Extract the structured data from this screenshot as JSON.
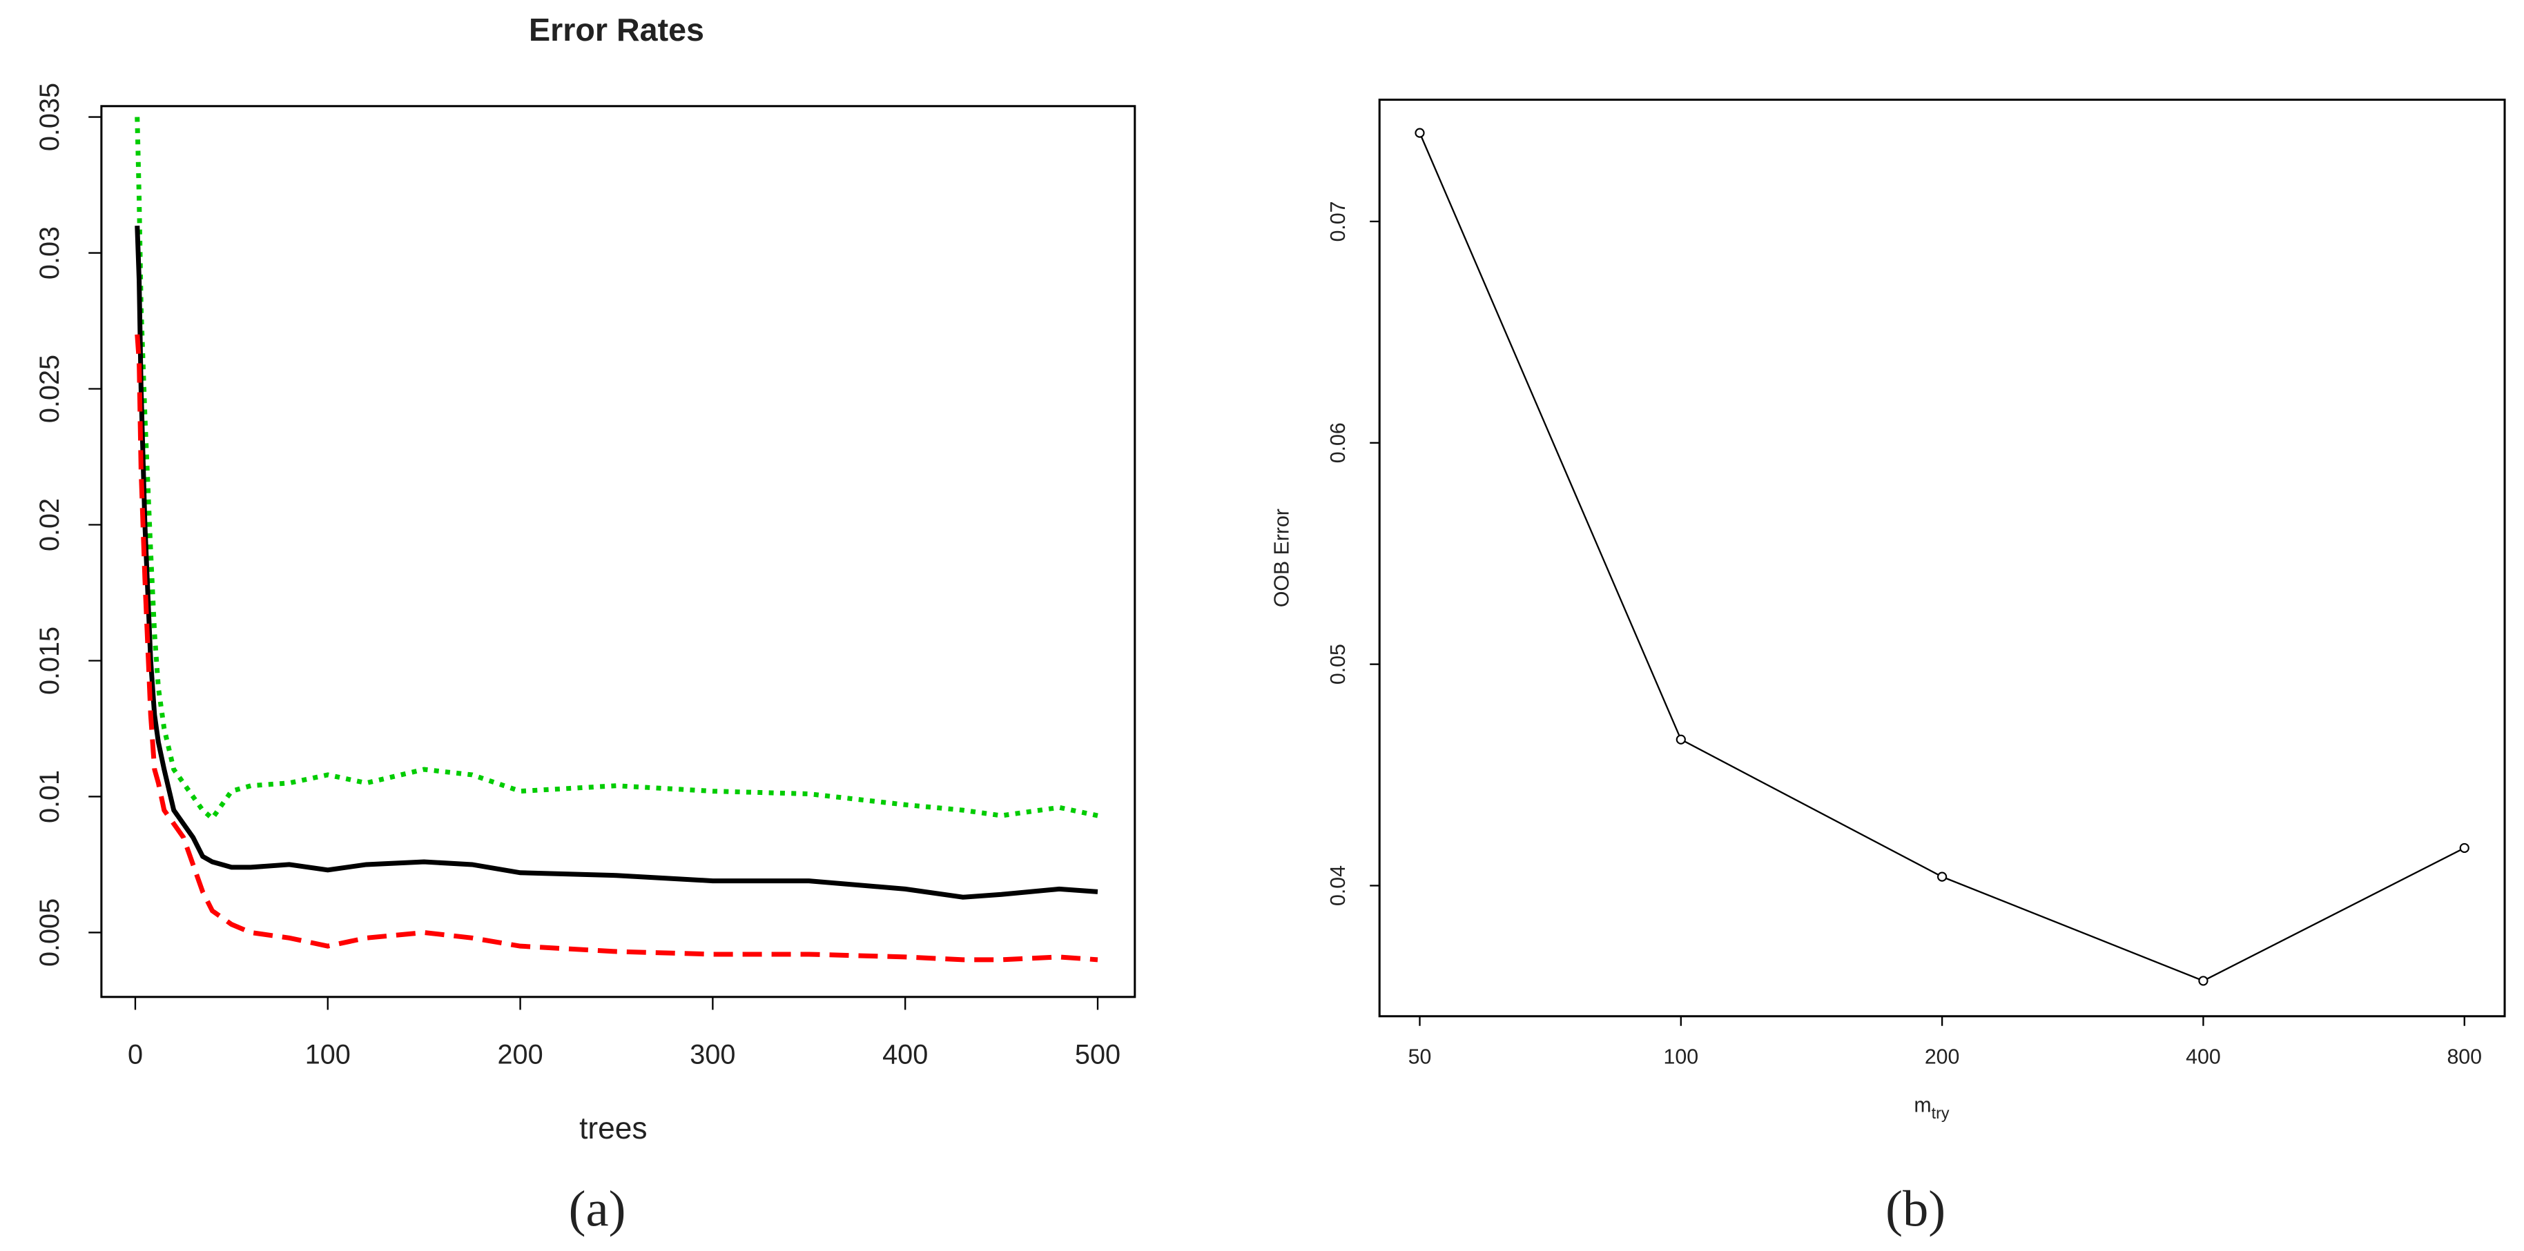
{
  "chart_data": [
    {
      "type": "line",
      "title": "Error Rates",
      "xlabel": "trees",
      "panel_label": "(a)",
      "x": [
        1,
        2,
        3,
        5,
        8,
        10,
        12,
        15,
        20,
        25,
        30,
        35,
        40,
        50,
        60,
        80,
        100,
        120,
        150,
        175,
        200,
        250,
        300,
        350,
        400,
        430,
        450,
        480,
        500
      ],
      "series": [
        {
          "color": "#00cc00",
          "linestyle": "dotted",
          "values": [
            0.035,
            0.032,
            0.028,
            0.024,
            0.019,
            0.016,
            0.014,
            0.0125,
            0.011,
            0.0105,
            0.01,
            0.0095,
            0.0092,
            0.0102,
            0.0104,
            0.0105,
            0.0108,
            0.0105,
            0.011,
            0.0108,
            0.0102,
            0.0104,
            0.0102,
            0.0101,
            0.0097,
            0.0095,
            0.0093,
            0.0096,
            0.0093
          ]
        },
        {
          "color": "#000000",
          "linestyle": "solid",
          "values": [
            0.031,
            0.029,
            0.025,
            0.02,
            0.015,
            0.013,
            0.012,
            0.011,
            0.0095,
            0.009,
            0.0085,
            0.0078,
            0.0076,
            0.0074,
            0.0074,
            0.0075,
            0.0073,
            0.0075,
            0.0076,
            0.0075,
            0.0072,
            0.0071,
            0.0069,
            0.0069,
            0.0066,
            0.0063,
            0.0064,
            0.0066,
            0.0065
          ]
        },
        {
          "color": "#ff0000",
          "linestyle": "dashed",
          "values": [
            0.027,
            0.026,
            0.022,
            0.018,
            0.013,
            0.011,
            0.0105,
            0.0095,
            0.009,
            0.0085,
            0.0075,
            0.0065,
            0.0058,
            0.0053,
            0.005,
            0.0048,
            0.0045,
            0.0048,
            0.005,
            0.0048,
            0.0045,
            0.0043,
            0.0042,
            0.0042,
            0.0041,
            0.004,
            0.004,
            0.0041,
            0.004
          ]
        }
      ],
      "xlim": [
        -17.6,
        519.3
      ],
      "xticks": [
        0,
        100,
        200,
        300,
        400,
        500
      ],
      "ylim": [
        0.00263,
        0.0354
      ],
      "yticks": [
        0.005,
        0.01,
        0.015,
        0.02,
        0.025,
        0.03,
        0.035
      ]
    },
    {
      "type": "line",
      "ylabel": "OOB Error",
      "xlabel": "m",
      "xlabel_subscript": "try",
      "panel_label": "(b)",
      "categories": [
        "50",
        "100",
        "200",
        "400",
        "800"
      ],
      "series": [
        {
          "color": "#000000",
          "linestyle": "solid",
          "marker": "circle",
          "values": [
            0.074,
            0.0466,
            0.0404,
            0.0357,
            0.0417
          ]
        }
      ],
      "ylim": [
        0.0341,
        0.0755
      ],
      "yticks": [
        0.04,
        0.05,
        0.06,
        0.07
      ]
    }
  ]
}
